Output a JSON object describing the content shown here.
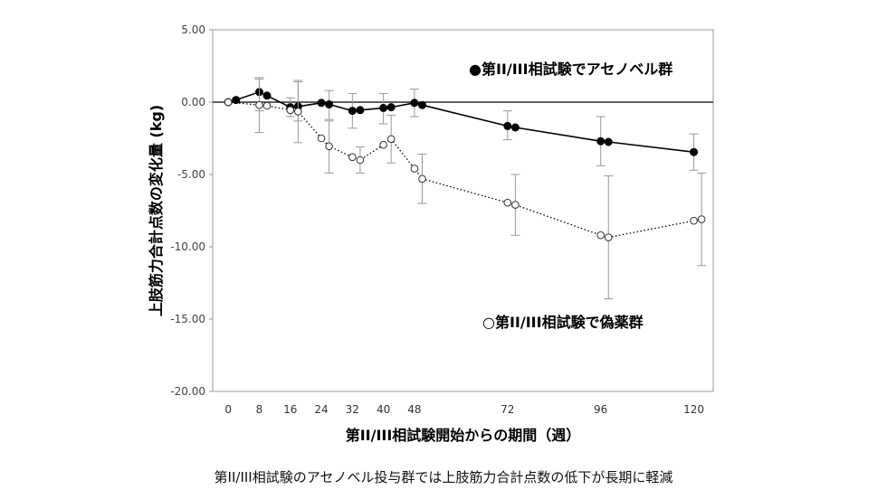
{
  "caption": "第II/III相試験のアセノベル投与群では上肢筋力合計点数の低下が長期に軽減",
  "chart_data": {
    "type": "line",
    "xlabel": "第II/III相試験開始からの期間（週）",
    "ylabel": "上肢筋力合計点数の変化量 (kg)",
    "x_ticks": [
      0,
      8,
      16,
      24,
      32,
      40,
      48,
      72,
      96,
      120
    ],
    "y_ticks": [
      "5.00",
      "0.00",
      "-5.00",
      "-10.00",
      "-15.00",
      "-20.00"
    ],
    "xlim": [
      -4,
      125
    ],
    "ylim": [
      -20,
      5
    ],
    "grid": false,
    "reference_line": 0,
    "series": [
      {
        "name": "●第II/III相試験でアセノベル群",
        "marker": "filled",
        "line_style": "solid",
        "color": "#000000",
        "points": [
          {
            "x": 0,
            "y": 0.0
          },
          {
            "x": 2,
            "y": 0.15
          },
          {
            "x": 8,
            "y": 0.7,
            "err_low": -0.6,
            "err_high": 1.6
          },
          {
            "x": 10,
            "y": 0.45
          },
          {
            "x": 16,
            "y": -0.35,
            "err_low": -1.0,
            "err_high": 0.3
          },
          {
            "x": 18,
            "y": -0.3,
            "err_low": -1.3,
            "err_high": 1.4
          },
          {
            "x": 24,
            "y": -0.05
          },
          {
            "x": 26,
            "y": -0.15,
            "err_low": -1.2,
            "err_high": 0.8
          },
          {
            "x": 32,
            "y": -0.6,
            "err_low": -1.8,
            "err_high": 0.6
          },
          {
            "x": 34,
            "y": -0.55
          },
          {
            "x": 40,
            "y": -0.4,
            "err_low": -1.5,
            "err_high": 0.6
          },
          {
            "x": 42,
            "y": -0.35
          },
          {
            "x": 48,
            "y": -0.05,
            "err_low": -1.0,
            "err_high": 0.9
          },
          {
            "x": 50,
            "y": -0.2
          },
          {
            "x": 72,
            "y": -1.65,
            "err_low": -2.6,
            "err_high": -0.6
          },
          {
            "x": 74,
            "y": -1.75
          },
          {
            "x": 96,
            "y": -2.7,
            "err_low": -4.4,
            "err_high": -1.0
          },
          {
            "x": 98,
            "y": -2.75
          },
          {
            "x": 120,
            "y": -3.45,
            "err_low": -4.7,
            "err_high": -2.2
          }
        ]
      },
      {
        "name": "○第II/III相試験で偽薬群",
        "marker": "open",
        "line_style": "dotted",
        "color": "#000000",
        "points": [
          {
            "x": 0,
            "y": 0.0
          },
          {
            "x": 8,
            "y": -0.2,
            "err_low": -2.1,
            "err_high": 1.7
          },
          {
            "x": 10,
            "y": -0.25
          },
          {
            "x": 16,
            "y": -0.55
          },
          {
            "x": 18,
            "y": -0.65,
            "err_low": -2.8,
            "err_high": 1.5
          },
          {
            "x": 24,
            "y": -2.5
          },
          {
            "x": 26,
            "y": -3.05,
            "err_low": -4.9,
            "err_high": -1.3
          },
          {
            "x": 32,
            "y": -3.8
          },
          {
            "x": 34,
            "y": -4.0,
            "err_low": -4.9,
            "err_high": -3.1
          },
          {
            "x": 40,
            "y": -2.95
          },
          {
            "x": 42,
            "y": -2.55,
            "err_low": -4.2,
            "err_high": -0.9
          },
          {
            "x": 48,
            "y": -4.6
          },
          {
            "x": 50,
            "y": -5.3,
            "err_low": -7.0,
            "err_high": -3.6
          },
          {
            "x": 72,
            "y": -6.95
          },
          {
            "x": 74,
            "y": -7.1,
            "err_low": -9.2,
            "err_high": -5.0
          },
          {
            "x": 96,
            "y": -9.2
          },
          {
            "x": 98,
            "y": -9.35,
            "err_low": -13.6,
            "err_high": -5.1
          },
          {
            "x": 120,
            "y": -8.2
          },
          {
            "x": 122,
            "y": -8.1,
            "err_low": -11.3,
            "err_high": -4.9
          }
        ]
      }
    ]
  }
}
